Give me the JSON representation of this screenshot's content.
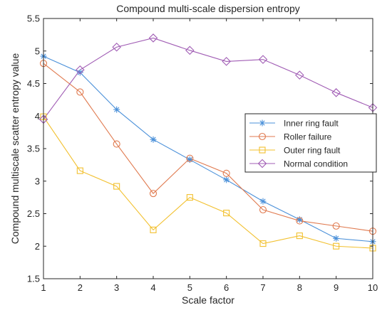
{
  "chart_data": {
    "type": "line",
    "title": "Compound multi-scale dispersion entropy",
    "xlabel": "Scale factor",
    "ylabel": "Compound multiscale scatter entropy value",
    "x": [
      1,
      2,
      3,
      4,
      5,
      6,
      7,
      8,
      9,
      10
    ],
    "xlim": [
      1,
      10
    ],
    "ylim": [
      1.5,
      5.5
    ],
    "xticks": [
      "1",
      "2",
      "3",
      "4",
      "5",
      "6",
      "7",
      "8",
      "9",
      "10"
    ],
    "yticks": [
      "1.5",
      "2",
      "2.5",
      "3",
      "3.5",
      "4",
      "4.5",
      "5",
      "5.5"
    ],
    "grid": false,
    "legend_position": "right",
    "series": [
      {
        "name": "Inner ring fault",
        "color": "#4a90d9",
        "marker": "asterisk",
        "values": [
          4.92,
          4.67,
          4.1,
          3.64,
          3.33,
          3.02,
          2.69,
          2.41,
          2.12,
          2.07
        ]
      },
      {
        "name": "Roller failure",
        "color": "#e07a4f",
        "marker": "circle",
        "values": [
          4.81,
          4.37,
          3.57,
          2.81,
          3.35,
          3.12,
          2.56,
          2.39,
          2.31,
          2.23
        ]
      },
      {
        "name": "Outer ring fault",
        "color": "#f2c02e",
        "marker": "square",
        "values": [
          3.99,
          3.16,
          2.92,
          2.25,
          2.75,
          2.51,
          2.04,
          2.16,
          2.0,
          1.97
        ]
      },
      {
        "name": "Normal condition",
        "color": "#a05cb4",
        "marker": "diamond",
        "values": [
          3.95,
          4.71,
          5.06,
          5.2,
          5.01,
          4.84,
          4.87,
          4.63,
          4.36,
          4.13
        ]
      }
    ]
  }
}
